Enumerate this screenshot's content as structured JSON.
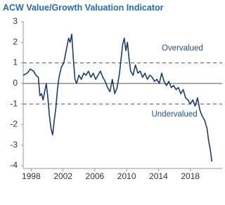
{
  "chart_data": {
    "type": "line",
    "title": "ACW Value/Growth Valuation Indicator",
    "x": [
      1997.0,
      1997.5,
      1997.9,
      1998.3,
      1998.6,
      1998.9,
      1999.1,
      1999.3,
      1999.5,
      1999.7,
      1999.9,
      2000.1,
      2000.3,
      2000.5,
      2000.7,
      2000.9,
      2001.1,
      2001.3,
      2001.5,
      2001.8,
      2002.1,
      2002.4,
      2002.7,
      2002.9,
      2003.1,
      2003.3,
      2003.5,
      2003.7,
      2004.0,
      2004.3,
      2004.6,
      2004.9,
      2005.2,
      2005.5,
      2005.8,
      2006.1,
      2006.4,
      2006.7,
      2007.0,
      2007.3,
      2007.6,
      2007.9,
      2008.2,
      2008.5,
      2008.8,
      2009.1,
      2009.3,
      2009.5,
      2009.7,
      2009.9,
      2010.1,
      2010.3,
      2010.5,
      2010.8,
      2011.1,
      2011.4,
      2011.7,
      2012.0,
      2012.3,
      2012.6,
      2012.9,
      2013.2,
      2013.5,
      2013.8,
      2014.1,
      2014.4,
      2014.7,
      2015.0,
      2015.3,
      2015.6,
      2015.9,
      2016.2,
      2016.5,
      2016.8,
      2017.1,
      2017.4,
      2017.7,
      2018.0,
      2018.3,
      2018.6,
      2018.9,
      2019.2,
      2019.5,
      2019.8,
      2020.1,
      2020.3,
      2020.5,
      2020.7
    ],
    "series": [
      {
        "color": "#1f3d6b",
        "values": [
          0.4,
          0.5,
          0.7,
          0.6,
          0.4,
          0.3,
          -0.6,
          -0.5,
          -0.8,
          -0.4,
          0.0,
          -0.7,
          -1.6,
          -2.2,
          -2.5,
          -1.8,
          -1.2,
          -0.3,
          0.3,
          0.8,
          1.0,
          1.6,
          2.2,
          2.0,
          2.4,
          1.2,
          0.2,
          0.0,
          0.4,
          0.2,
          0.5,
          0.4,
          0.6,
          0.3,
          0.5,
          0.2,
          0.4,
          0.6,
          0.3,
          0.1,
          -0.2,
          -0.4,
          0.2,
          -0.5,
          -0.2,
          0.5,
          1.2,
          1.9,
          2.2,
          1.6,
          2.0,
          1.2,
          0.6,
          0.4,
          0.9,
          0.5,
          0.6,
          0.3,
          0.5,
          0.2,
          0.4,
          0.3,
          0.1,
          0.2,
          0.0,
          0.5,
          0.1,
          -0.1,
          0.1,
          -0.2,
          -0.1,
          -0.3,
          -0.2,
          -0.5,
          -0.3,
          -0.7,
          -0.8,
          -1.0,
          -0.8,
          -1.1,
          -0.7,
          -1.3,
          -1.6,
          -1.8,
          -2.2,
          -2.8,
          -3.2,
          -3.8
        ]
      }
    ],
    "xlim": [
      1997,
      2022
    ],
    "xticks": [
      1998,
      2002,
      2006,
      2010,
      2014,
      2018
    ],
    "ylim": [
      -4,
      3
    ],
    "yticks": [
      -4,
      -3,
      -2,
      -1,
      0,
      1,
      2,
      3
    ],
    "hlines": [
      {
        "value": 1,
        "dashed": true
      },
      {
        "value": 0,
        "dashed": false
      },
      {
        "value": -1,
        "dashed": true
      }
    ],
    "annotations": [
      {
        "text": "Overvalued",
        "x": 2017,
        "y": 1.7
      },
      {
        "text": "Undervalued",
        "x": 2016,
        "y": -1.5
      }
    ]
  }
}
